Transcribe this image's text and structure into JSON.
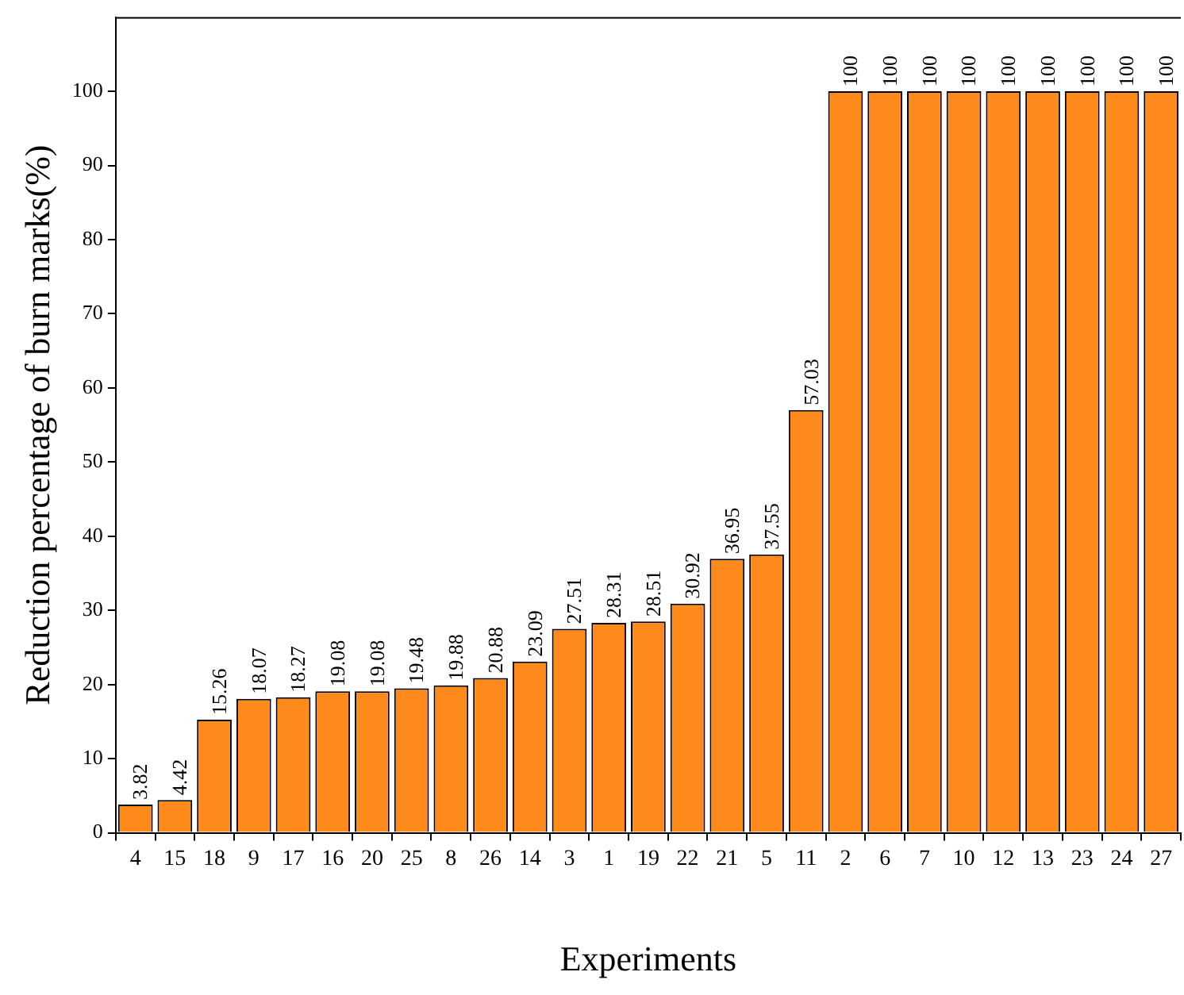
{
  "chart_data": {
    "type": "bar",
    "xlabel": "Experiments",
    "ylabel": "Reduction percentage of burn marks(%)",
    "categories": [
      "4",
      "15",
      "18",
      "9",
      "17",
      "16",
      "20",
      "25",
      "8",
      "26",
      "14",
      "3",
      "1",
      "19",
      "22",
      "21",
      "5",
      "11",
      "2",
      "6",
      "7",
      "10",
      "12",
      "13",
      "23",
      "24",
      "27"
    ],
    "values": [
      3.82,
      4.42,
      15.26,
      18.07,
      18.27,
      19.08,
      19.08,
      19.48,
      19.88,
      20.88,
      23.09,
      27.51,
      28.31,
      28.51,
      30.92,
      36.95,
      37.55,
      57.03,
      100,
      100,
      100,
      100,
      100,
      100,
      100,
      100,
      100
    ],
    "color": "#ff8a1c",
    "ylim": [
      0,
      110
    ],
    "yticks": [
      0,
      10,
      20,
      30,
      40,
      50,
      60,
      70,
      80,
      90,
      100
    ],
    "data_labels": true,
    "grid": false,
    "legend": false
  }
}
